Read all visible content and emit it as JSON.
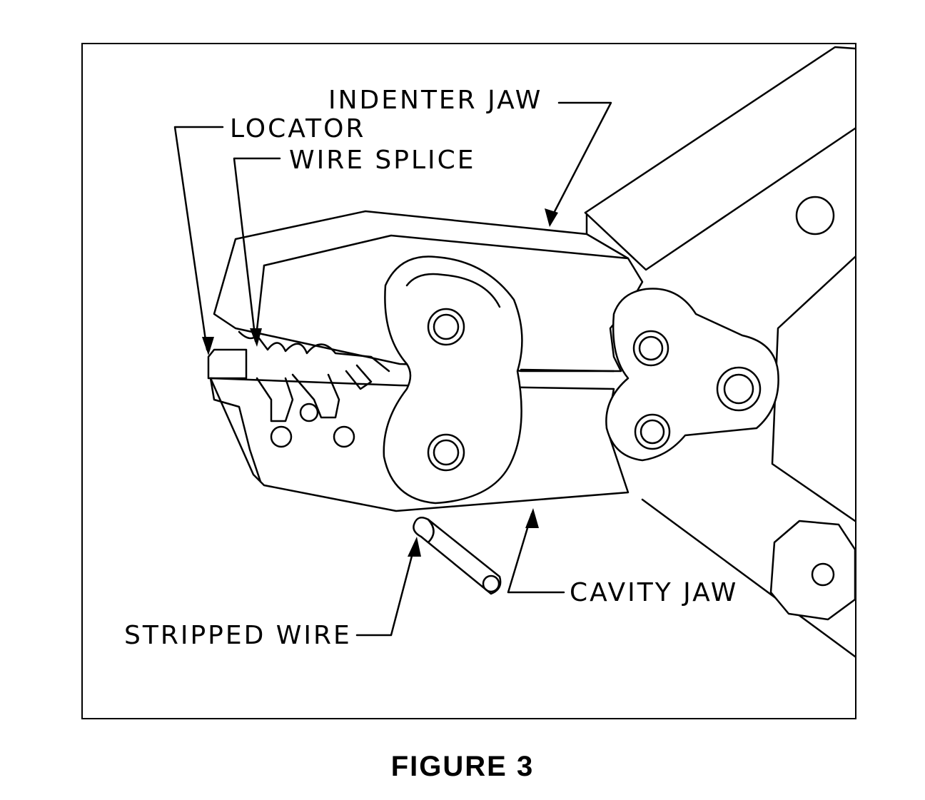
{
  "labels": {
    "indenter_jaw": "INDENTER JAW",
    "locator": "LOCATOR",
    "wire_splice": "WIRE SPLICE",
    "cavity_jaw": "CAVITY JAW",
    "stripped_wire": "STRIPPED WIRE"
  },
  "caption": "FIGURE 3",
  "colors": {
    "line": "#000000",
    "background": "#ffffff"
  }
}
